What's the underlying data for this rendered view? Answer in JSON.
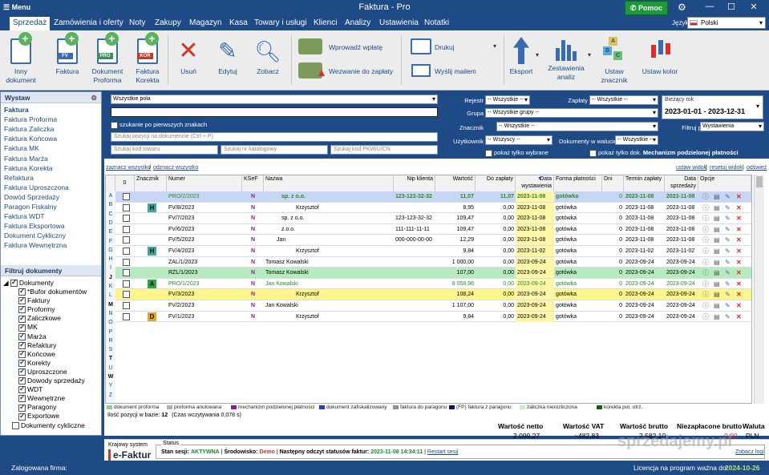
{
  "titlebar": {
    "menu": "Menu",
    "title": "Faktura  - Pro",
    "help": "Pomoc"
  },
  "menubar": {
    "items": [
      "Sprzedaż",
      "Zamówienia i oferty",
      "Noty",
      "Zakupy",
      "Magazyn",
      "Kasa",
      "Towary i usługi",
      "Klienci",
      "Analizy",
      "Ustawienia",
      "Notatki"
    ],
    "lang_label": "Język",
    "lang_value": "Polski"
  },
  "toolbar": {
    "inny": "Inny\ndokument",
    "faktura": "Faktura",
    "proforma": "Dokument\nProforma",
    "korekta": "Faktura\nKorekta",
    "usun": "Usuń",
    "edytuj": "Edytuj",
    "zobacz": "Zobacz",
    "wplata": "Wprowadź wpłatę",
    "wezwanie": "Wezwanie do zapłaty",
    "drukuj": "Drukuj",
    "mail": "Wyślij mailem",
    "eksport": "Eksport",
    "zestawienia": "Zestawienia\nanaliz",
    "znacznik": "Ustaw\nznacznik",
    "kolor": "Ustaw kolor",
    "tag_fv": "FV",
    "tag_pro": "PRO",
    "tag_kor": "KOR"
  },
  "sidebar": {
    "title": "Wystaw",
    "links": [
      "Faktura",
      "Faktura Proforma",
      "Faktura Zaliczka",
      "Faktura Końcowa",
      "Faktura MK",
      "Faktura Marża",
      "Faktura Korekta",
      "Refaktura",
      "Faktura Uproszczona",
      "Dowód Sprzedaży",
      "Paragon Fiskalny",
      "Faktura WDT",
      "Faktura Eksportowa",
      "Dokument Cykliczny",
      "Faktura Wewnętrzna"
    ],
    "filter_title": "Filtruj dokumenty",
    "tree_root": "Dokumenty",
    "tree_items": [
      "*Bufor dokumentów",
      "Faktury",
      "Proformy",
      "Zaliczkowe",
      "MK",
      "Marża",
      "Refaktury",
      "Końcowe",
      "Korekty",
      "Uproszczone",
      "Dowody sprzedaży",
      "WDT",
      "Wewnętrzne",
      "Paragony",
      "Exportowe"
    ],
    "tree_last": "Dokumenty cykliczne"
  },
  "filters": {
    "scope": "Wszystkie pola",
    "first_chars": "szukanie po pierwszych znakach",
    "search_doc": "Szukaj pozycji na dokumencie (Ctrl + P)",
    "kod_towaru": "Szukaj kod towaru",
    "nr_katalogowy": "Szukaj nr katalogowy",
    "pkwiu": "Szukaj kod PKWiU/CN"
  },
  "rfilters": {
    "rejestr_l": "Rejestr",
    "rejestr_v": "-- Wszystkie --",
    "zaplaty_l": "Zapłaty",
    "zaplaty_v": "-- Wszystkie --",
    "grupa_l": "Grupa",
    "grupa_v": "-- Wszystkie grupy --",
    "znacznik_l": "Znacznik",
    "znacznik_v": "-- Wszystkie --",
    "uzytkownik_l": "Użytkownik",
    "uzytkownik_v": "-- Wszyscy --",
    "waluta_l": "Dokumenty w walucie",
    "waluta_v": "-- Wszystkie --",
    "tylko_wybrane": "pokaż tylko wybrane",
    "tylko_dok": "pokaż tylko dok.",
    "mechanizm": "Mechanizm podzielonej płatności",
    "period_label": "Bieżący rok",
    "period_value": "2023-01-01 - 2023-12-31",
    "filtruj_l": "Filtruj po dacie",
    "filtruj_v": "Wystawienia"
  },
  "gridlinks": {
    "zaznacz": "zaznacz wszystko",
    "odznacz": "odznacz wszystko",
    "ustaw": "ustaw widok",
    "resetuj": "resetuj widok",
    "odswiez": "odśwież"
  },
  "grid": {
    "headers": [
      "0",
      "Znacznik",
      "Numer",
      "KSeF",
      "Nazwa",
      "Nip klienta",
      "Wartość",
      "Do zapłaty",
      "Data wystawienia",
      "Forma płatności",
      "Dni",
      "Termin zapłaty",
      "Data sprzedaży",
      "Opcje"
    ],
    "letters": [
      "A",
      "B",
      "C",
      "D",
      "E",
      "F",
      "G",
      "H",
      "I",
      "J",
      "K",
      "L",
      "M",
      "N",
      "O",
      "P",
      "R",
      "S",
      "T",
      "U",
      "W",
      "Y",
      "Z"
    ],
    "rows": [
      {
        "badge": "",
        "numer": "PRO/2/2023",
        "ksef": "N",
        "nazwa": "sp. z o.o.",
        "nip": "123-123-32-32",
        "wartosc": "11,07",
        "dozap": "11,07",
        "data": "2023-11-08",
        "forma": "gotówka",
        "dni": "0",
        "termin": "2023-11-08",
        "sprzedaz": "2023-11-08"
      },
      {
        "badge": "H",
        "numer": "FV/8/2023",
        "ksef": "N",
        "nazwa": "Krzysztof",
        "nip": "",
        "wartosc": "8,95",
        "dozap": "0,00",
        "data": "2023-11-08",
        "forma": "gotówka",
        "dni": "0",
        "termin": "2023-11-08",
        "sprzedaz": "2023-11-08"
      },
      {
        "badge": "",
        "numer": "FV/7/2023",
        "ksef": "N",
        "nazwa": "sp. z o.o.",
        "nip": "123-123-32-32",
        "wartosc": "109,47",
        "dozap": "0,00",
        "data": "2023-11-08",
        "forma": "gotówka",
        "dni": "0",
        "termin": "2023-11-08",
        "sprzedaz": "2023-11-08"
      },
      {
        "badge": "",
        "numer": "FV/6/2023",
        "ksef": "N",
        "nazwa": "z.o.o.",
        "nip": "111-111-11-11",
        "wartosc": "109,47",
        "dozap": "0,00",
        "data": "2023-11-08",
        "forma": "gotówka",
        "dni": "0",
        "termin": "2023-11-08",
        "sprzedaz": "2023-11-08"
      },
      {
        "badge": "",
        "numer": "FV/5/2023",
        "ksef": "N",
        "nazwa": "Jan",
        "nip": "000-000-00-00",
        "wartosc": "12,29",
        "dozap": "0,00",
        "data": "2023-11-08",
        "forma": "gotówka",
        "dni": "0",
        "termin": "2023-11-08",
        "sprzedaz": "2023-11-08"
      },
      {
        "badge": "H",
        "numer": "FV/4/2023",
        "ksef": "N",
        "nazwa": "Krzysztof",
        "nip": "",
        "wartosc": "9,84",
        "dozap": "0,00",
        "data": "2023-11-02",
        "forma": "gotówka",
        "dni": "0",
        "termin": "2023-11-02",
        "sprzedaz": "2023-11-02"
      },
      {
        "badge": "",
        "numer": "ZAL/1/2023",
        "ksef": "N",
        "nazwa": "Tomasz Kowalski",
        "nip": "",
        "wartosc": "1 000,00",
        "dozap": "0,00",
        "data": "2023-09-24",
        "forma": "gotówka",
        "dni": "0",
        "termin": "2023-09-24",
        "sprzedaz": "2023-09-24"
      },
      {
        "badge": "",
        "numer": "RZL/1/2023",
        "ksef": "N",
        "nazwa": "Tomasz Kowalski",
        "nip": "",
        "wartosc": "107,00",
        "dozap": "0,00",
        "data": "2023-09-24",
        "forma": "gotówka",
        "dni": "0",
        "termin": "2023-09-24",
        "sprzedaz": "2023-09-24"
      },
      {
        "badge": "A",
        "numer": "PRO/1/2023",
        "ksef": "N",
        "nazwa": "Jan Kowalski",
        "nip": "",
        "wartosc": "8 058,96",
        "dozap": "0,00",
        "data": "2023-09-24",
        "forma": "gotówka",
        "dni": "0",
        "termin": "2023-09-24",
        "sprzedaz": "2023-09-24"
      },
      {
        "badge": "",
        "numer": "FV/3/2023",
        "ksef": "N",
        "nazwa": "Krzysztof",
        "nip": "",
        "wartosc": "108,24",
        "dozap": "0,00",
        "data": "2023-09-24",
        "forma": "gotówka",
        "dni": "0",
        "termin": "2023-09-24",
        "sprzedaz": "2023-09-24"
      },
      {
        "badge": "",
        "numer": "FV/2/2023",
        "ksef": "N",
        "nazwa": "Jan Kowalski",
        "nip": "",
        "wartosc": "1 107,00",
        "dozap": "0,00",
        "data": "2023-09-24",
        "forma": "gotówka",
        "dni": "0",
        "termin": "2023-09-24",
        "sprzedaz": "2023-09-24"
      },
      {
        "badge": "D",
        "numer": "FV/1/2023",
        "ksef": "N",
        "nazwa": "Krzysztof",
        "nip": "",
        "wartosc": "9,84",
        "dozap": "0,00",
        "data": "2023-09-24",
        "forma": "gotówka",
        "dni": "0",
        "termin": "2023-09-24",
        "sprzedaz": "2023-09-24"
      }
    ]
  },
  "legend": [
    "dokument proforma",
    "proforma anulowana",
    "mechanizm podzielonej płatności",
    "dokument zafiskalizowany",
    "faktura do paragonu",
    "(FP) faktura z paragonu",
    "zaliczka nierozliczona",
    "korekta pot. otrz."
  ],
  "legend_colors": [
    "#8fd08f",
    "#b0b0b0",
    "#8b1e8b",
    "#2040c0",
    "#909090",
    "#101060",
    "#c8f0c8",
    "#106010"
  ],
  "count": {
    "label": "Ilość pozycji w bazie:",
    "value": "12",
    "time": "(Czas wczytywania 0,078 s)"
  },
  "totals": {
    "netto_l": "Wartość netto",
    "netto_v": "2 099,27",
    "vat_l": "Wartość VAT",
    "vat_v": "~482,83",
    "brutto_l": "Wartość brutto",
    "brutto_v": "2 582,10",
    "niezap_l": "Niezapłacone brutto",
    "niezap_v": "0,00",
    "waluta_l": "Waluta",
    "waluta_v": "PLN"
  },
  "ksef": {
    "krajowy": "Krajowy system",
    "efaktur": "e-Faktur",
    "status": "Status",
    "sesja_l": "Stan sesji:",
    "sesja_v": "AKTYWNA",
    "srod_l": "Środowisko:",
    "srod_v": "Demo",
    "odczyt_l": "Następny odczyt statusów faktur:",
    "odczyt_v": "2023-11-08 14:34:11",
    "restart": "Restart sesji",
    "logi": "Zobacz logi"
  },
  "statusbar": {
    "firma": "Zalogowana firma:",
    "licencja": "Licencja na program ważna do:",
    "data": "2024-10-26"
  },
  "watermark": "sprzedajemy.pl"
}
